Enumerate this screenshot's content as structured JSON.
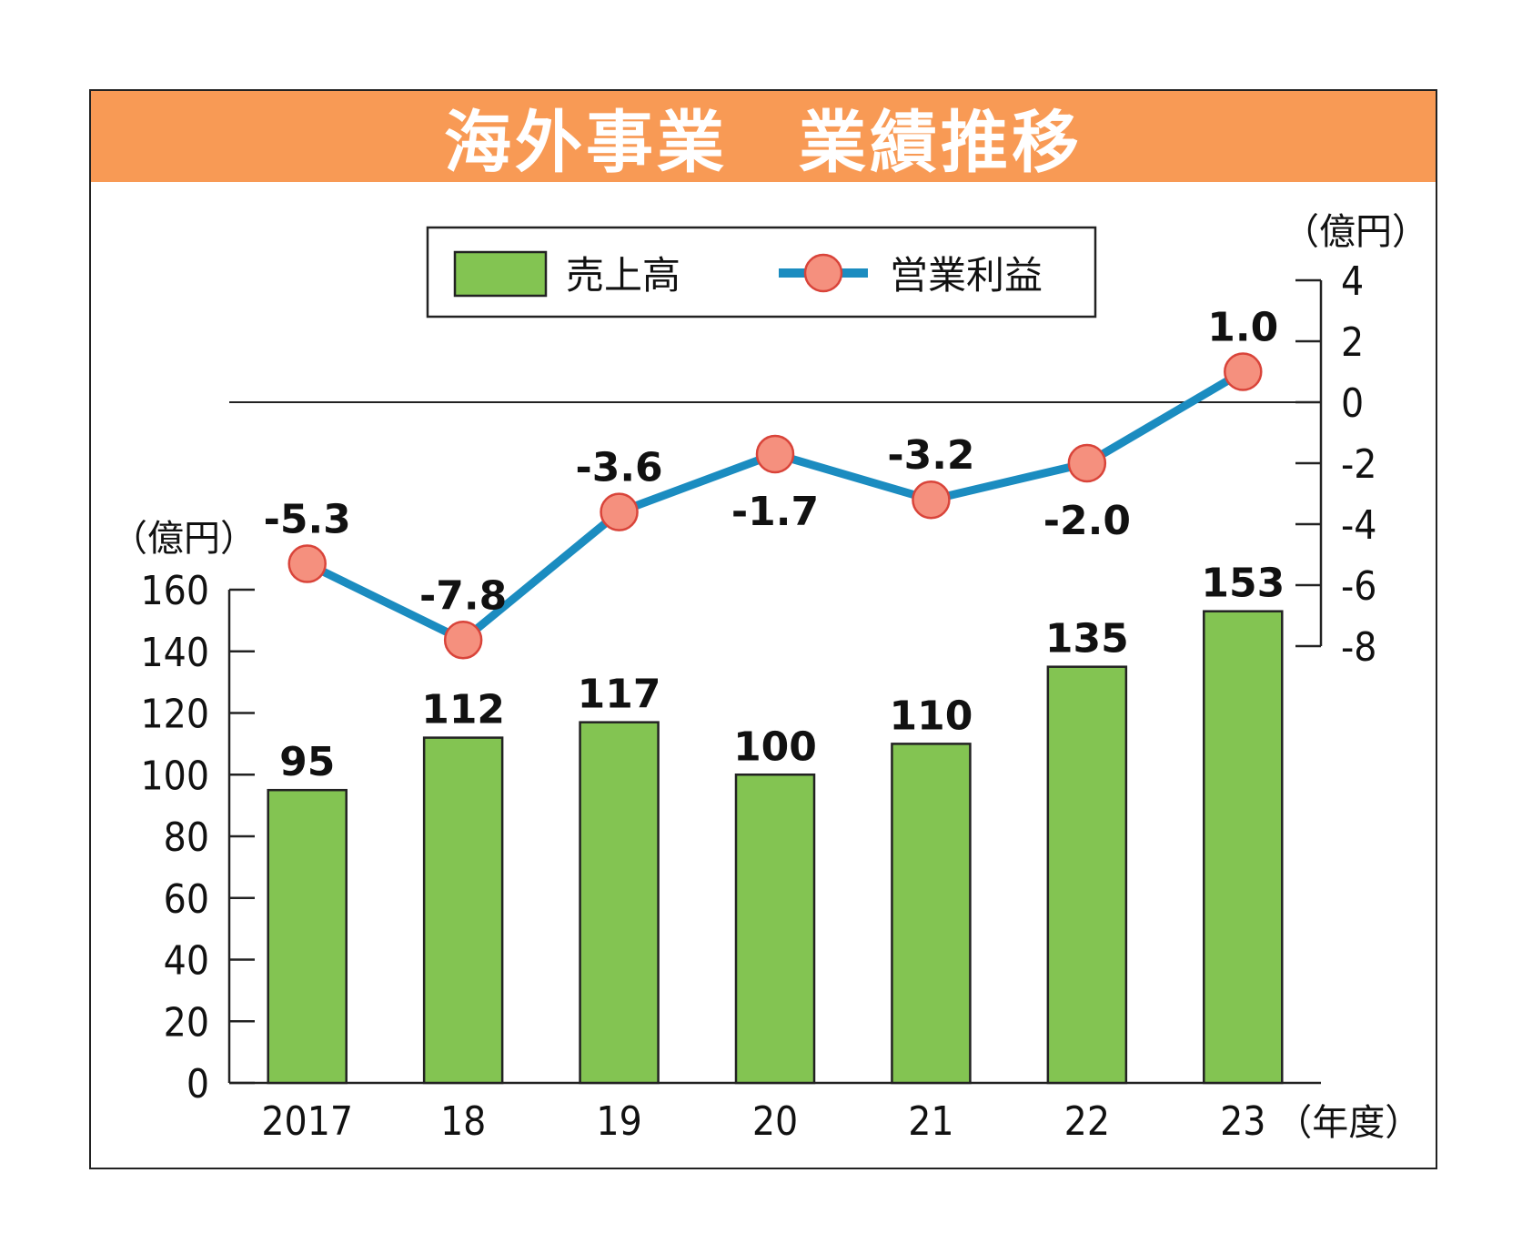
{
  "title": "海外事業　業績推移",
  "colors": {
    "title_band": "#f89a55",
    "bar_fill": "#83c452",
    "line": "#1b8cc0",
    "marker_fill": "#f5907e",
    "marker_stroke": "#d9443a"
  },
  "chart_data": {
    "type": "bar+line",
    "categories": [
      "2017",
      "18",
      "19",
      "20",
      "21",
      "22",
      "23"
    ],
    "x_unit": "（年度）",
    "series": [
      {
        "name": "売上高",
        "type": "bar",
        "axis": "left",
        "values": [
          95,
          112,
          117,
          100,
          110,
          135,
          153
        ],
        "labels": [
          "95",
          "112",
          "117",
          "100",
          "110",
          "135",
          "153"
        ]
      },
      {
        "name": "営業利益",
        "type": "line",
        "axis": "right",
        "values": [
          -5.3,
          -7.8,
          -3.6,
          -1.7,
          -3.2,
          -2.0,
          1.0
        ],
        "labels": [
          "-5.3",
          "-7.8",
          "-3.6",
          "-1.7",
          "-3.2",
          "-2.0",
          "1.0"
        ]
      }
    ],
    "left_axis": {
      "unit": "（億円）",
      "ylim": [
        0,
        160
      ],
      "ticks": [
        "0",
        "20",
        "40",
        "60",
        "80",
        "100",
        "120",
        "140",
        "160"
      ]
    },
    "right_axis": {
      "unit": "（億円）",
      "ylim": [
        -8,
        4
      ],
      "ticks": [
        "4",
        "2",
        "0",
        "-2",
        "-4",
        "-6",
        "-8"
      ]
    },
    "legend": {
      "placement": "top"
    }
  }
}
